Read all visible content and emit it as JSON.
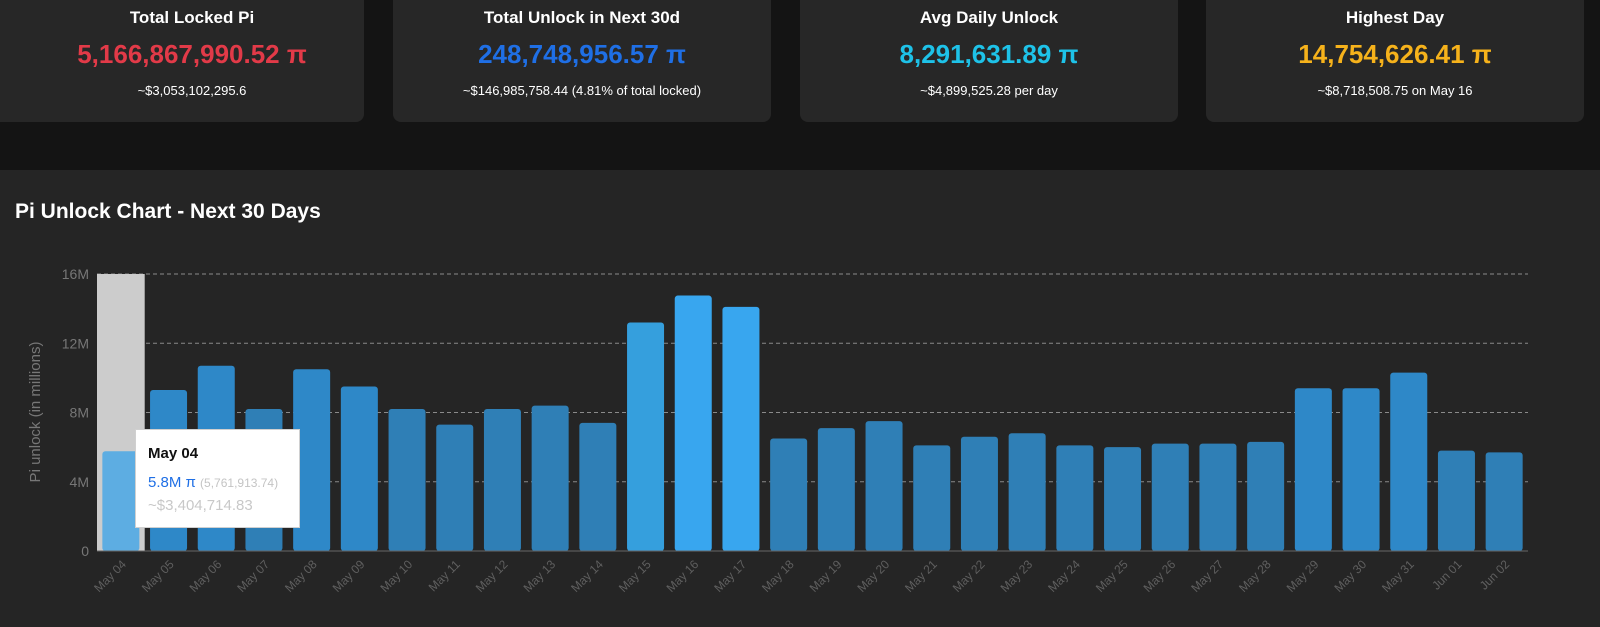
{
  "cards": [
    {
      "title": "Total Locked Pi",
      "value": "5,166,867,990.52 π",
      "sub": "~$3,053,102,295.6",
      "color": "#e23a48"
    },
    {
      "title": "Total Unlock in Next 30d",
      "value": "248,748,956.57 π",
      "sub": "~$146,985,758.44 (4.81% of total locked)",
      "color": "#1f6fe5"
    },
    {
      "title": "Avg Daily Unlock",
      "value": "8,291,631.89 π",
      "sub": "~$4,899,525.28 per day",
      "color": "#1ec2e8"
    },
    {
      "title": "Highest Day",
      "value": "14,754,626.41 π",
      "sub": "~$8,718,508.75 on May 16",
      "color": "#f6b21b"
    }
  ],
  "chart_title": "Pi Unlock Chart - Next 30 Days",
  "chart_data": {
    "type": "bar",
    "title": "Pi Unlock Chart - Next 30 Days",
    "xlabel": "",
    "ylabel": "Pi unlock (in millions)",
    "ylim": [
      0,
      16000000
    ],
    "yticks": [
      0,
      4000000,
      8000000,
      12000000,
      16000000
    ],
    "ytick_labels": [
      "0",
      "4M",
      "8M",
      "12M",
      "16M"
    ],
    "grid": "horizontal dashed",
    "categories": [
      "May 04",
      "May 05",
      "May 06",
      "May 07",
      "May 08",
      "May 09",
      "May 10",
      "May 11",
      "May 12",
      "May 13",
      "May 14",
      "May 15",
      "May 16",
      "May 17",
      "May 18",
      "May 19",
      "May 20",
      "May 21",
      "May 22",
      "May 23",
      "May 24",
      "May 25",
      "May 26",
      "May 27",
      "May 28",
      "May 29",
      "May 30",
      "May 31",
      "Jun 01",
      "Jun 02"
    ],
    "values": [
      5761913.74,
      9300000,
      10700000,
      8200000,
      10500000,
      9500000,
      8200000,
      7300000,
      8200000,
      8400000,
      7400000,
      13200000,
      14754626.41,
      14100000,
      6500000,
      7100000,
      7500000,
      6100000,
      6600000,
      6800000,
      6100000,
      6000000,
      6200000,
      6200000,
      6300000,
      9400000,
      9400000,
      10300000,
      5800000,
      5700000
    ],
    "hovered_index": 0,
    "bar_colors": {
      "low": "#2f7fb6",
      "mid": "#2e88c8",
      "high": "#359fdd",
      "peak": "#38a6ef",
      "hovered": "#5dade2",
      "hover_band": "#cccccc"
    }
  },
  "tooltip": {
    "date": "May 04",
    "value": "5.8M π",
    "raw": "(5,761,913.74)",
    "usd": "~$3,404,714.83"
  }
}
